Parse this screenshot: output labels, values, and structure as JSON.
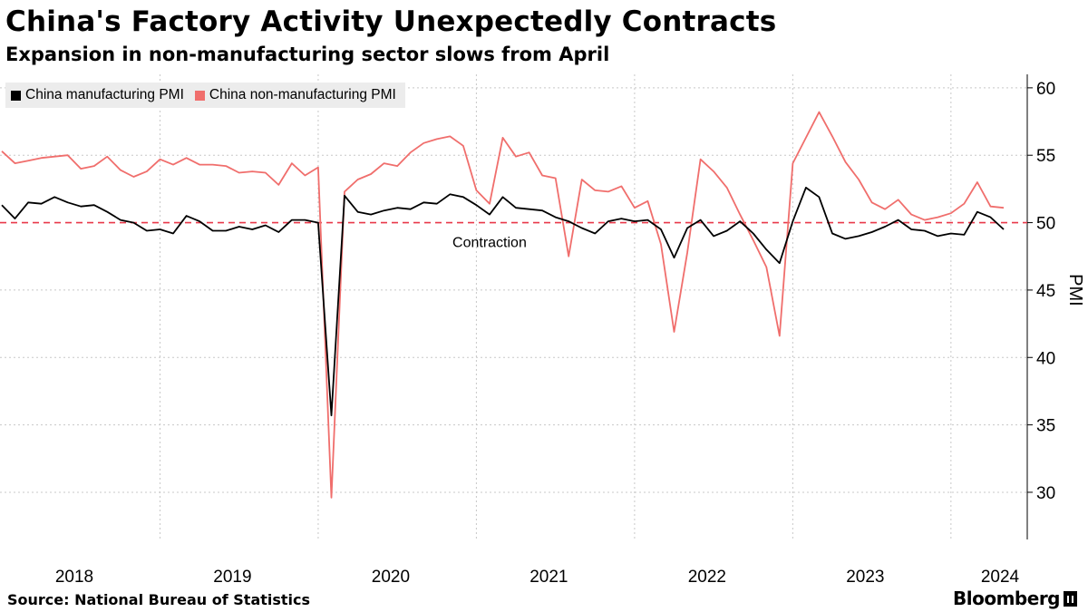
{
  "header": {
    "title": "China's Factory Activity Unexpectedly Contracts",
    "subtitle": "Expansion in non-manufacturing sector slows from April"
  },
  "footer": {
    "source": "Source: National Bureau of Statistics",
    "brand": "Bloomberg"
  },
  "colors": {
    "manufacturing": "#000000",
    "non_manufacturing": "#f06e6c",
    "threshold": "#e8394a",
    "grid": "#c8c8c8",
    "axis": "#000000"
  },
  "chart_data": {
    "type": "line",
    "ylabel": "PMI",
    "ylim": [
      26.5,
      61
    ],
    "y_ticks": [
      30,
      35,
      40,
      45,
      50,
      55,
      60
    ],
    "y_axis_side": "right",
    "x_tick_labels": [
      "2018",
      "2019",
      "2020",
      "2021",
      "2022",
      "2023",
      "2024"
    ],
    "x_start": "2018-01",
    "x_end": "2024-05",
    "grid": "dotted",
    "legend_position": "top-left",
    "annotations": [
      {
        "text": "Contraction",
        "x": "2021-02",
        "y": 48.6
      }
    ],
    "threshold": {
      "y": 50,
      "style": "dashed"
    },
    "series": [
      {
        "name": "China manufacturing PMI",
        "color": "#000000",
        "values": [
          51.3,
          50.3,
          51.5,
          51.4,
          51.9,
          51.5,
          51.2,
          51.3,
          50.8,
          50.2,
          50.0,
          49.4,
          49.5,
          49.2,
          50.5,
          50.1,
          49.4,
          49.4,
          49.7,
          49.5,
          49.8,
          49.3,
          50.2,
          50.2,
          50.0,
          35.7,
          52.0,
          50.8,
          50.6,
          50.9,
          51.1,
          51.0,
          51.5,
          51.4,
          52.1,
          51.9,
          51.3,
          50.6,
          51.9,
          51.1,
          51.0,
          50.9,
          50.4,
          50.1,
          49.6,
          49.2,
          50.1,
          50.3,
          50.1,
          50.2,
          49.5,
          47.4,
          49.6,
          50.2,
          49.0,
          49.4,
          50.1,
          49.2,
          48.0,
          47.0,
          50.1,
          52.6,
          51.9,
          49.2,
          48.8,
          49.0,
          49.3,
          49.7,
          50.2,
          49.5,
          49.4,
          49.0,
          49.2,
          49.1,
          50.8,
          50.4,
          49.5
        ]
      },
      {
        "name": "China non-manufacturing PMI",
        "color": "#f06e6c",
        "values": [
          55.3,
          54.4,
          54.6,
          54.8,
          54.9,
          55.0,
          54.0,
          54.2,
          54.9,
          53.9,
          53.4,
          53.8,
          54.7,
          54.3,
          54.8,
          54.3,
          54.3,
          54.2,
          53.7,
          53.8,
          53.7,
          52.8,
          54.4,
          53.5,
          54.1,
          29.6,
          52.3,
          53.2,
          53.6,
          54.4,
          54.2,
          55.2,
          55.9,
          56.2,
          56.4,
          55.7,
          52.4,
          51.4,
          56.3,
          54.9,
          55.2,
          53.5,
          53.3,
          47.5,
          53.2,
          52.4,
          52.3,
          52.7,
          51.1,
          51.6,
          48.4,
          41.9,
          47.8,
          54.7,
          53.8,
          52.6,
          50.6,
          48.7,
          46.7,
          41.6,
          54.4,
          56.3,
          58.2,
          56.4,
          54.5,
          53.2,
          51.5,
          51.0,
          51.7,
          50.6,
          50.2,
          50.4,
          50.7,
          51.4,
          53.0,
          51.2,
          51.1
        ]
      }
    ]
  }
}
